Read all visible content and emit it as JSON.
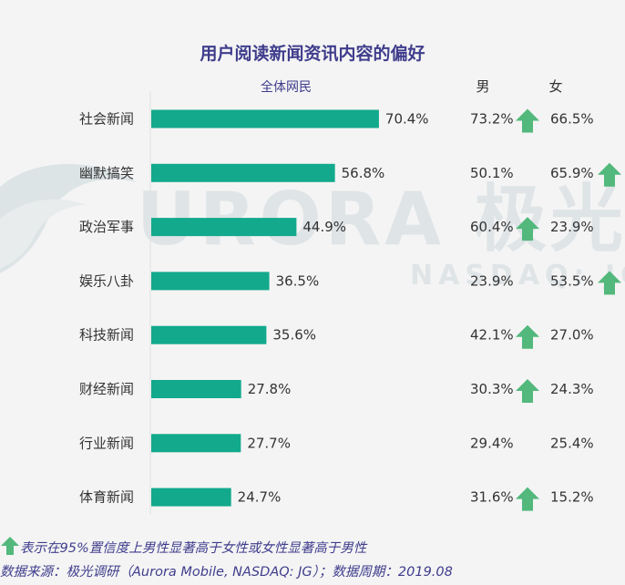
{
  "chart_data": {
    "type": "bar",
    "title": "用户阅读新闻资讯内容的偏好",
    "series_label": "全体网民",
    "categories": [
      "社会新闻",
      "幽默搞笑",
      "政治军事",
      "娱乐八卦",
      "科技新闻",
      "财经新闻",
      "行业新闻",
      "体育新闻"
    ],
    "values": [
      70.4,
      56.8,
      44.9,
      36.5,
      35.6,
      27.8,
      27.7,
      24.7
    ],
    "value_labels": [
      "70.4%",
      "56.8%",
      "44.9%",
      "36.5%",
      "35.6%",
      "27.8%",
      "27.7%",
      "24.7%"
    ],
    "xlim": [
      0,
      100
    ],
    "male": {
      "label": "男",
      "values": [
        "73.2%",
        "50.1%",
        "60.4%",
        "23.9%",
        "42.1%",
        "30.3%",
        "29.4%",
        "31.6%"
      ],
      "significant": [
        true,
        false,
        true,
        false,
        true,
        true,
        false,
        true
      ]
    },
    "female": {
      "label": "女",
      "values": [
        "66.5%",
        "65.9%",
        "23.9%",
        "53.5%",
        "27.0%",
        "24.3%",
        "25.4%",
        "15.2%"
      ],
      "significant": [
        false,
        true,
        false,
        true,
        false,
        false,
        false,
        false
      ]
    }
  },
  "colors": {
    "bar": "#12a98c",
    "arrow": "#52b87c",
    "title": "#3f3d8c",
    "label": "#333333",
    "watermark": "#dfe4e7"
  },
  "watermark": {
    "brand": "URORA 极光",
    "sub": "NASDAQ: JG"
  },
  "footer": {
    "note": "表示在95%置信度上男性显著高于女性或女性显著高于男性",
    "source": "数据来源：极光调研（Aurora Mobile, NASDAQ: JG）；数据周期：2019.08"
  }
}
